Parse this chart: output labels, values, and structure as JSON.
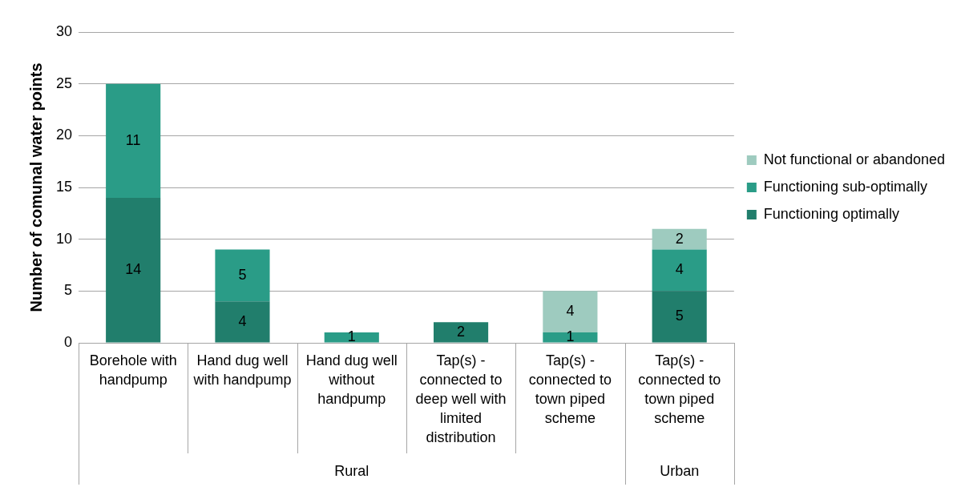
{
  "chart_data": {
    "type": "bar",
    "stacked": true,
    "ylabel": "Number of comunal water points",
    "categories": [
      "Borehole with handpump",
      "Hand dug well with handpump",
      "Hand dug well without handpump",
      "Tap(s) - connected to deep well with limited distribution",
      "Tap(s) - connected to town piped scheme",
      "Tap(s) - connected to town piped scheme"
    ],
    "series": [
      {
        "name": "Functioning optimally",
        "color": "#217e6c",
        "values": [
          14,
          4,
          0,
          2,
          0,
          5
        ],
        "value_labels": [
          "14",
          "4",
          null,
          "2",
          null,
          "5"
        ]
      },
      {
        "name": "Functioning sub-optimally",
        "color": "#2a9c87",
        "values": [
          11,
          5,
          1,
          0,
          1,
          4
        ],
        "value_labels": [
          "11",
          "5",
          "1",
          null,
          "1",
          "4"
        ]
      },
      {
        "name": "Not functional or abandoned",
        "color": "#9ecbbf",
        "values": [
          0,
          0,
          0,
          0,
          4,
          2
        ],
        "value_labels": [
          null,
          null,
          null,
          null,
          "4",
          "2"
        ]
      }
    ],
    "ylim": [
      0,
      30
    ],
    "yticks": [
      0,
      5,
      10,
      15,
      20,
      25,
      30
    ],
    "grid": "y",
    "legend": "right",
    "annotations": [
      "Rural",
      "Urban"
    ]
  }
}
